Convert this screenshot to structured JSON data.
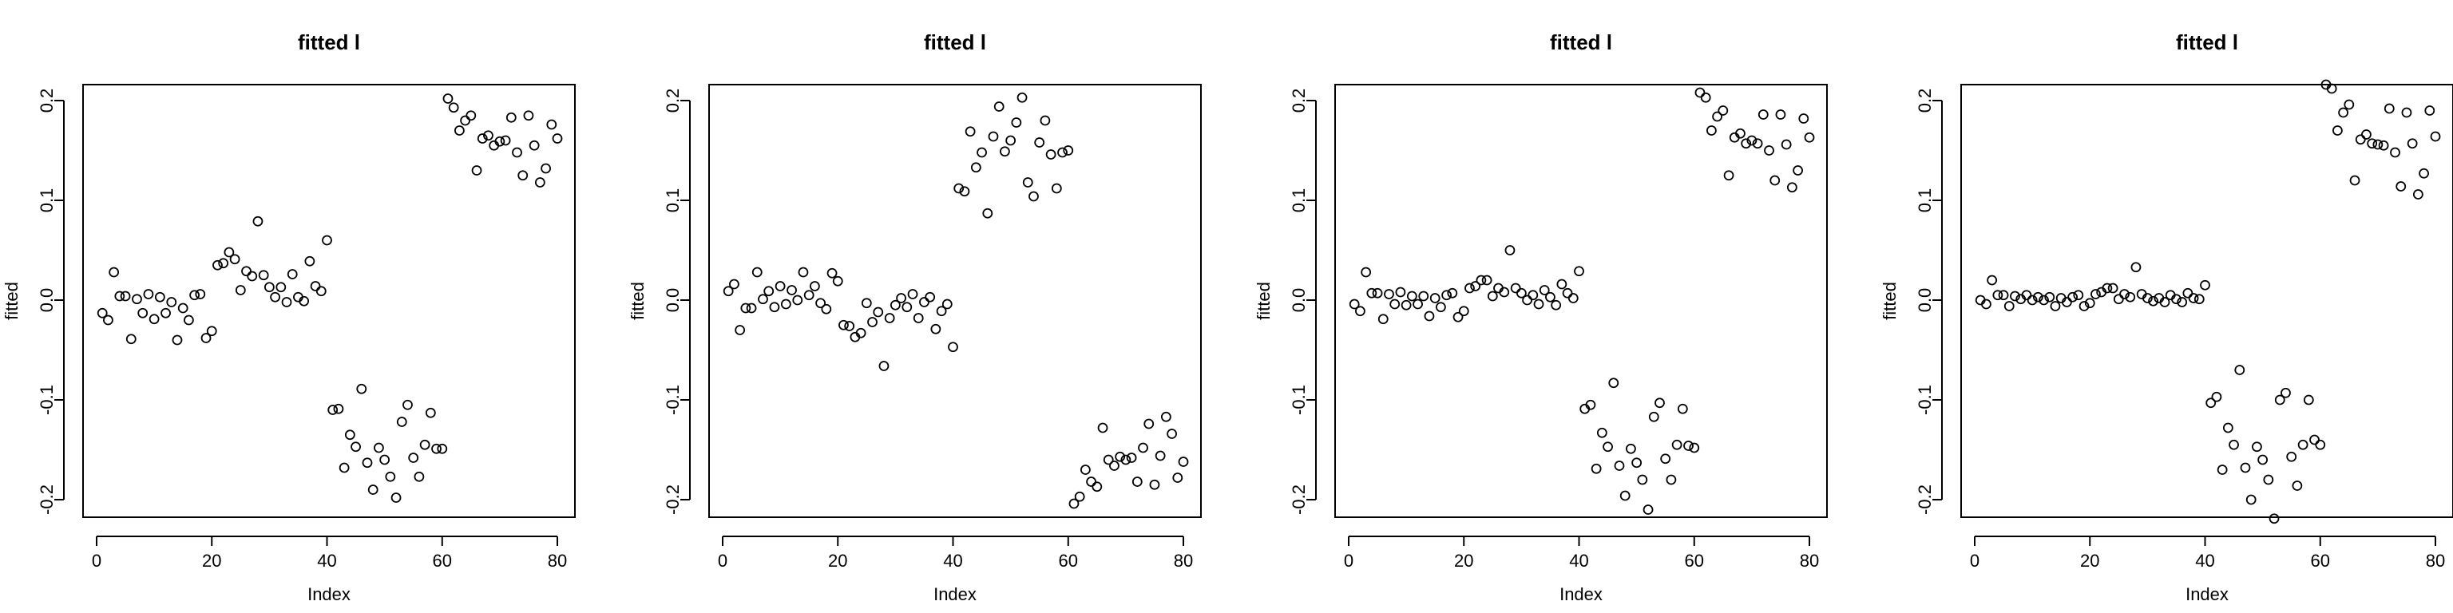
{
  "chart_data": [
    {
      "type": "scatter",
      "title": "fitted l",
      "xlabel": "Index",
      "ylabel": "fitted",
      "xlim": [
        0,
        80
      ],
      "ylim": [
        -0.2,
        0.2
      ],
      "xticks": [
        "0",
        "20",
        "40",
        "60",
        "80"
      ],
      "yticks": [
        "-0.2",
        "-0.1",
        "0.0",
        "0.1",
        "0.2"
      ],
      "marker": "open-circle",
      "grid": false,
      "x": [
        1,
        2,
        3,
        4,
        5,
        6,
        7,
        8,
        9,
        10,
        11,
        12,
        13,
        14,
        15,
        16,
        17,
        18,
        19,
        20,
        21,
        22,
        23,
        24,
        25,
        26,
        27,
        28,
        29,
        30,
        31,
        32,
        33,
        34,
        35,
        36,
        37,
        38,
        39,
        40,
        41,
        42,
        43,
        44,
        45,
        46,
        47,
        48,
        49,
        50,
        51,
        52,
        53,
        54,
        55,
        56,
        57,
        58,
        59,
        60,
        61,
        62,
        63,
        64,
        65,
        66,
        67,
        68,
        69,
        70,
        71,
        72,
        73,
        74,
        75,
        76,
        77,
        78,
        79,
        80
      ],
      "y": [
        -0.013,
        -0.02,
        0.028,
        0.004,
        0.004,
        -0.039,
        0.001,
        -0.013,
        0.006,
        -0.019,
        0.003,
        -0.013,
        -0.002,
        -0.04,
        -0.008,
        -0.02,
        0.005,
        0.006,
        -0.038,
        -0.031,
        0.035,
        0.037,
        0.048,
        0.041,
        0.01,
        0.029,
        0.024,
        0.079,
        0.025,
        0.013,
        0.003,
        0.013,
        -0.002,
        0.026,
        0.003,
        -0.001,
        0.039,
        0.014,
        0.009,
        0.06,
        -0.11,
        -0.109,
        -0.168,
        -0.135,
        -0.147,
        -0.089,
        -0.163,
        -0.19,
        -0.148,
        -0.16,
        -0.177,
        -0.198,
        -0.122,
        -0.105,
        -0.158,
        -0.177,
        -0.145,
        -0.113,
        -0.149,
        -0.149,
        0.202,
        0.193,
        0.17,
        0.18,
        0.185,
        0.13,
        0.162,
        0.165,
        0.155,
        0.159,
        0.16,
        0.183,
        0.148,
        0.125,
        0.185,
        0.155,
        0.118,
        0.132,
        0.176,
        0.162
      ]
    },
    {
      "type": "scatter",
      "title": "fitted l",
      "xlabel": "Index",
      "ylabel": "fitted",
      "xlim": [
        0,
        80
      ],
      "ylim": [
        -0.2,
        0.2
      ],
      "xticks": [
        "0",
        "20",
        "40",
        "60",
        "80"
      ],
      "yticks": [
        "-0.2",
        "-0.1",
        "0.0",
        "0.1",
        "0.2"
      ],
      "marker": "open-circle",
      "grid": false,
      "x": [
        1,
        2,
        3,
        4,
        5,
        6,
        7,
        8,
        9,
        10,
        11,
        12,
        13,
        14,
        15,
        16,
        17,
        18,
        19,
        20,
        21,
        22,
        23,
        24,
        25,
        26,
        27,
        28,
        29,
        30,
        31,
        32,
        33,
        34,
        35,
        36,
        37,
        38,
        39,
        40,
        41,
        42,
        43,
        44,
        45,
        46,
        47,
        48,
        49,
        50,
        51,
        52,
        53,
        54,
        55,
        56,
        57,
        58,
        59,
        60,
        61,
        62,
        63,
        64,
        65,
        66,
        67,
        68,
        69,
        70,
        71,
        72,
        73,
        74,
        75,
        76,
        77,
        78,
        79,
        80
      ],
      "y": [
        0.009,
        0.016,
        -0.03,
        -0.008,
        -0.008,
        0.028,
        0.001,
        0.009,
        -0.007,
        0.014,
        -0.004,
        0.01,
        0.0,
        0.028,
        0.005,
        0.014,
        -0.003,
        -0.009,
        0.027,
        0.019,
        -0.025,
        -0.026,
        -0.037,
        -0.033,
        -0.003,
        -0.022,
        -0.012,
        -0.066,
        -0.018,
        -0.005,
        0.002,
        -0.007,
        0.006,
        -0.018,
        -0.002,
        0.003,
        -0.029,
        -0.011,
        -0.004,
        -0.047,
        0.112,
        0.109,
        0.169,
        0.133,
        0.148,
        0.087,
        0.164,
        0.194,
        0.149,
        0.16,
        0.178,
        0.203,
        0.118,
        0.104,
        0.158,
        0.18,
        0.146,
        0.112,
        0.148,
        0.15,
        -0.204,
        -0.197,
        -0.17,
        -0.182,
        -0.187,
        -0.128,
        -0.16,
        -0.166,
        -0.157,
        -0.16,
        -0.158,
        -0.182,
        -0.148,
        -0.124,
        -0.185,
        -0.156,
        -0.117,
        -0.134,
        -0.178,
        -0.162
      ]
    },
    {
      "type": "scatter",
      "title": "fitted l",
      "xlabel": "Index",
      "ylabel": "fitted",
      "xlim": [
        0,
        80
      ],
      "ylim": [
        -0.2,
        0.2
      ],
      "xticks": [
        "0",
        "20",
        "40",
        "60",
        "80"
      ],
      "yticks": [
        "-0.2",
        "-0.1",
        "0.0",
        "0.1",
        "0.2"
      ],
      "marker": "open-circle",
      "grid": false,
      "x": [
        1,
        2,
        3,
        4,
        5,
        6,
        7,
        8,
        9,
        10,
        11,
        12,
        13,
        14,
        15,
        16,
        17,
        18,
        19,
        20,
        21,
        22,
        23,
        24,
        25,
        26,
        27,
        28,
        29,
        30,
        31,
        32,
        33,
        34,
        35,
        36,
        37,
        38,
        39,
        40,
        41,
        42,
        43,
        44,
        45,
        46,
        47,
        48,
        49,
        50,
        51,
        52,
        53,
        54,
        55,
        56,
        57,
        58,
        59,
        60,
        61,
        62,
        63,
        64,
        65,
        66,
        67,
        68,
        69,
        70,
        71,
        72,
        73,
        74,
        75,
        76,
        77,
        78,
        79,
        80
      ],
      "y": [
        -0.004,
        -0.011,
        0.028,
        0.007,
        0.007,
        -0.019,
        0.006,
        -0.004,
        0.008,
        -0.005,
        0.004,
        -0.004,
        0.004,
        -0.016,
        0.002,
        -0.007,
        0.005,
        0.007,
        -0.017,
        -0.011,
        0.012,
        0.014,
        0.02,
        0.02,
        0.004,
        0.012,
        0.008,
        0.05,
        0.012,
        0.007,
        0.0,
        0.005,
        -0.004,
        0.01,
        0.003,
        -0.005,
        0.016,
        0.007,
        0.002,
        0.029,
        -0.109,
        -0.105,
        -0.169,
        -0.133,
        -0.147,
        -0.083,
        -0.166,
        -0.196,
        -0.149,
        -0.163,
        -0.18,
        -0.21,
        -0.117,
        -0.103,
        -0.159,
        -0.18,
        -0.145,
        -0.109,
        -0.146,
        -0.148,
        0.208,
        0.203,
        0.17,
        0.184,
        0.19,
        0.125,
        0.163,
        0.167,
        0.157,
        0.16,
        0.157,
        0.186,
        0.15,
        0.12,
        0.186,
        0.156,
        0.113,
        0.13,
        0.182,
        0.163
      ]
    },
    {
      "type": "scatter",
      "title": "fitted l",
      "xlabel": "Index",
      "ylabel": "fitted",
      "xlim": [
        0,
        80
      ],
      "ylim": [
        -0.2,
        0.2
      ],
      "xticks": [
        "0",
        "20",
        "40",
        "60",
        "80"
      ],
      "yticks": [
        "-0.2",
        "-0.1",
        "0.0",
        "0.1",
        "0.2"
      ],
      "marker": "open-circle",
      "grid": false,
      "x": [
        1,
        2,
        3,
        4,
        5,
        6,
        7,
        8,
        9,
        10,
        11,
        12,
        13,
        14,
        15,
        16,
        17,
        18,
        19,
        20,
        21,
        22,
        23,
        24,
        25,
        26,
        27,
        28,
        29,
        30,
        31,
        32,
        33,
        34,
        35,
        36,
        37,
        38,
        39,
        40,
        41,
        42,
        43,
        44,
        45,
        46,
        47,
        48,
        49,
        50,
        51,
        52,
        53,
        54,
        55,
        56,
        57,
        58,
        59,
        60,
        61,
        62,
        63,
        64,
        65,
        66,
        67,
        68,
        69,
        70,
        71,
        72,
        73,
        74,
        75,
        76,
        77,
        78,
        79,
        80
      ],
      "y": [
        0.0,
        -0.004,
        0.02,
        0.005,
        0.005,
        -0.006,
        0.004,
        0.001,
        0.005,
        0.0,
        0.003,
        0.0,
        0.003,
        -0.006,
        0.002,
        -0.002,
        0.003,
        0.005,
        -0.006,
        -0.003,
        0.006,
        0.008,
        0.012,
        0.012,
        0.001,
        0.006,
        0.003,
        0.033,
        0.006,
        0.002,
        -0.001,
        0.002,
        -0.002,
        0.005,
        0.001,
        -0.002,
        0.007,
        0.002,
        0.001,
        0.015,
        -0.103,
        -0.097,
        -0.17,
        -0.128,
        -0.145,
        -0.07,
        -0.168,
        -0.2,
        -0.147,
        -0.16,
        -0.18,
        -0.219,
        -0.1,
        -0.093,
        -0.157,
        -0.186,
        -0.145,
        -0.1,
        -0.14,
        -0.145,
        0.216,
        0.212,
        0.17,
        0.188,
        0.196,
        0.12,
        0.161,
        0.166,
        0.157,
        0.156,
        0.155,
        0.192,
        0.148,
        0.114,
        0.188,
        0.157,
        0.106,
        0.127,
        0.19,
        0.164
      ]
    }
  ]
}
